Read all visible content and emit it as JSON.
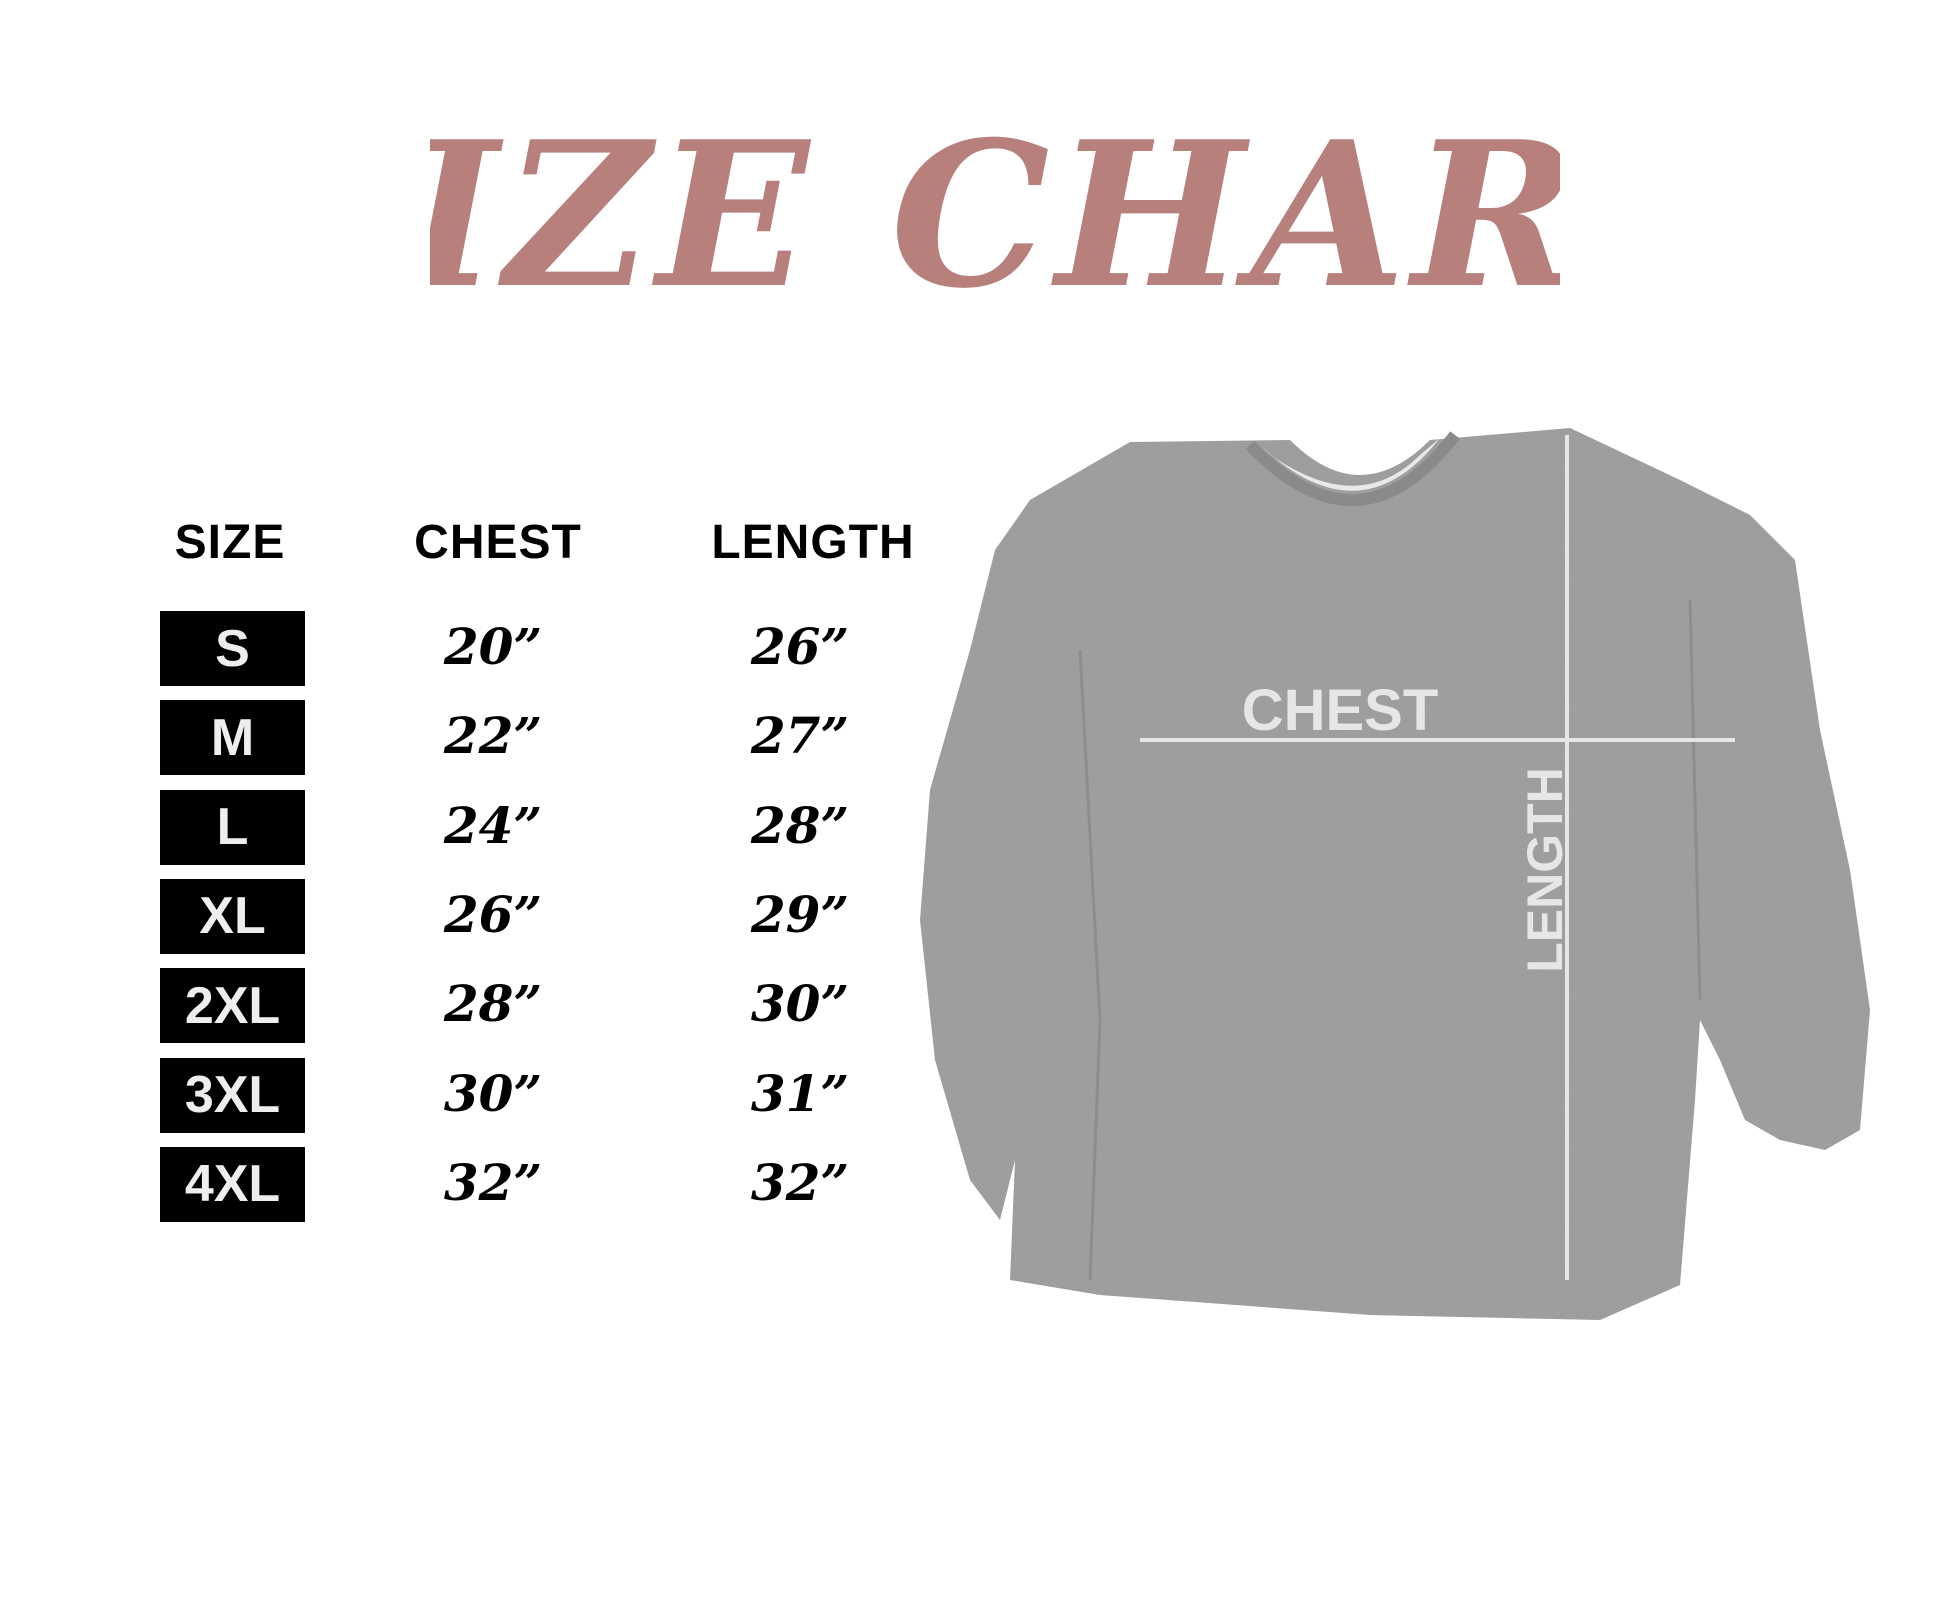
{
  "title": "SIZE CHART",
  "colors": {
    "title": "#b8807d",
    "shirt": "#9b9b9b",
    "guide": "#e6e6e6"
  },
  "headers": {
    "size": "SIZE",
    "chest": "CHEST",
    "length": "LENGTH"
  },
  "rows": [
    {
      "size": "S",
      "chest": "20”",
      "length": "26”"
    },
    {
      "size": "M",
      "chest": "22”",
      "length": "27”"
    },
    {
      "size": "L",
      "chest": "24”",
      "length": "28”"
    },
    {
      "size": "XL",
      "chest": "26”",
      "length": "29”"
    },
    {
      "size": "2XL",
      "chest": "28”",
      "length": "30”"
    },
    {
      "size": "3XL",
      "chest": "30”",
      "length": "31”"
    },
    {
      "size": "4XL",
      "chest": "32”",
      "length": "32”"
    }
  ],
  "diagram": {
    "chest_label": "CHEST",
    "length_label": "LENGTH"
  }
}
